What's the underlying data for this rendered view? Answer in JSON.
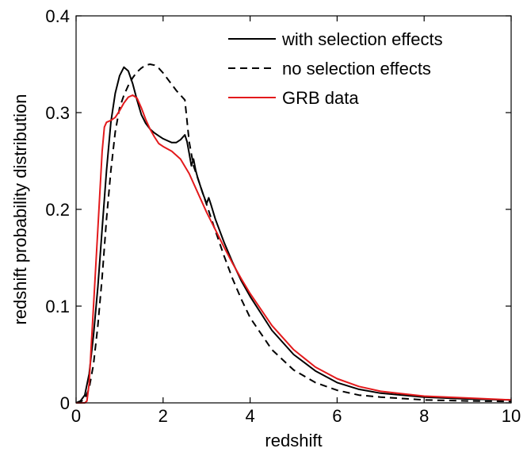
{
  "chart_data": {
    "type": "line",
    "xlabel": "redshift",
    "ylabel": "redshift probability distribution",
    "xlim": [
      0,
      10
    ],
    "ylim": [
      0,
      0.4
    ],
    "xticks": [
      0,
      2,
      4,
      6,
      8,
      10
    ],
    "yticks": [
      0,
      0.1,
      0.2,
      0.3,
      0.4
    ],
    "xtick_labels": [
      "0",
      "2",
      "4",
      "6",
      "8",
      "10"
    ],
    "ytick_labels": [
      "0",
      "0.1",
      "0.2",
      "0.3",
      "0.4"
    ],
    "grid": false,
    "legend_position": "top-right",
    "series": [
      {
        "name": "with selection effects",
        "color": "#000000",
        "dash": "solid",
        "x": [
          0,
          0.1,
          0.2,
          0.3,
          0.4,
          0.5,
          0.6,
          0.7,
          0.8,
          0.9,
          1.0,
          1.1,
          1.2,
          1.3,
          1.4,
          1.5,
          1.6,
          1.7,
          1.8,
          1.9,
          2.0,
          2.1,
          2.2,
          2.3,
          2.4,
          2.5,
          2.55,
          2.6,
          2.65,
          2.7,
          2.75,
          2.8,
          2.85,
          2.9,
          2.95,
          3.0,
          3.05,
          3.1,
          3.2,
          3.4,
          3.6,
          3.8,
          4.0,
          4.5,
          5.0,
          5.5,
          6.0,
          6.5,
          7.0,
          8.0,
          9.0,
          10.0
        ],
        "y": [
          0,
          0.002,
          0.008,
          0.03,
          0.07,
          0.12,
          0.18,
          0.24,
          0.29,
          0.32,
          0.338,
          0.347,
          0.343,
          0.33,
          0.313,
          0.298,
          0.289,
          0.283,
          0.279,
          0.276,
          0.273,
          0.271,
          0.269,
          0.269,
          0.272,
          0.277,
          0.27,
          0.258,
          0.245,
          0.252,
          0.24,
          0.232,
          0.225,
          0.218,
          0.212,
          0.206,
          0.212,
          0.205,
          0.19,
          0.166,
          0.145,
          0.126,
          0.11,
          0.075,
          0.05,
          0.033,
          0.021,
          0.014,
          0.01,
          0.006,
          0.004,
          0.003
        ]
      },
      {
        "name": "no selection effects",
        "color": "#000000",
        "dash": "dashed",
        "x": [
          0,
          0.1,
          0.2,
          0.3,
          0.4,
          0.5,
          0.6,
          0.7,
          0.8,
          0.9,
          1.0,
          1.1,
          1.2,
          1.3,
          1.4,
          1.5,
          1.6,
          1.7,
          1.8,
          1.9,
          2.0,
          2.1,
          2.2,
          2.3,
          2.4,
          2.5,
          2.6,
          2.7,
          2.8,
          3.0,
          3.2,
          3.4,
          3.6,
          3.8,
          4.0,
          4.5,
          5.0,
          5.5,
          6.0,
          6.5,
          7.0,
          8.0,
          9.0,
          10.0
        ],
        "y": [
          0,
          0.001,
          0.004,
          0.015,
          0.04,
          0.08,
          0.13,
          0.19,
          0.24,
          0.28,
          0.305,
          0.318,
          0.328,
          0.336,
          0.342,
          0.346,
          0.349,
          0.35,
          0.349,
          0.346,
          0.341,
          0.335,
          0.329,
          0.323,
          0.318,
          0.313,
          0.27,
          0.245,
          0.232,
          0.205,
          0.178,
          0.152,
          0.128,
          0.107,
          0.088,
          0.055,
          0.034,
          0.021,
          0.013,
          0.008,
          0.006,
          0.003,
          0.002,
          0.0015
        ]
      },
      {
        "name": "GRB data",
        "color": "#e31a1c",
        "dash": "solid",
        "x": [
          0,
          0.2,
          0.25,
          0.3,
          0.35,
          0.4,
          0.5,
          0.6,
          0.65,
          0.7,
          0.8,
          0.9,
          1.0,
          1.1,
          1.2,
          1.3,
          1.4,
          1.5,
          1.6,
          1.7,
          1.8,
          1.9,
          2.0,
          2.2,
          2.4,
          2.6,
          2.8,
          3.0,
          3.2,
          3.4,
          3.6,
          3.8,
          4.0,
          4.5,
          5.0,
          5.5,
          6.0,
          6.5,
          7.0,
          8.0,
          9.0,
          10.0
        ],
        "y": [
          0,
          0,
          0.002,
          0.02,
          0.06,
          0.1,
          0.18,
          0.26,
          0.285,
          0.29,
          0.292,
          0.295,
          0.302,
          0.31,
          0.316,
          0.318,
          0.315,
          0.305,
          0.293,
          0.283,
          0.275,
          0.268,
          0.265,
          0.26,
          0.252,
          0.237,
          0.217,
          0.197,
          0.179,
          0.161,
          0.144,
          0.128,
          0.113,
          0.08,
          0.055,
          0.037,
          0.025,
          0.017,
          0.012,
          0.007,
          0.005,
          0.003
        ]
      }
    ]
  }
}
